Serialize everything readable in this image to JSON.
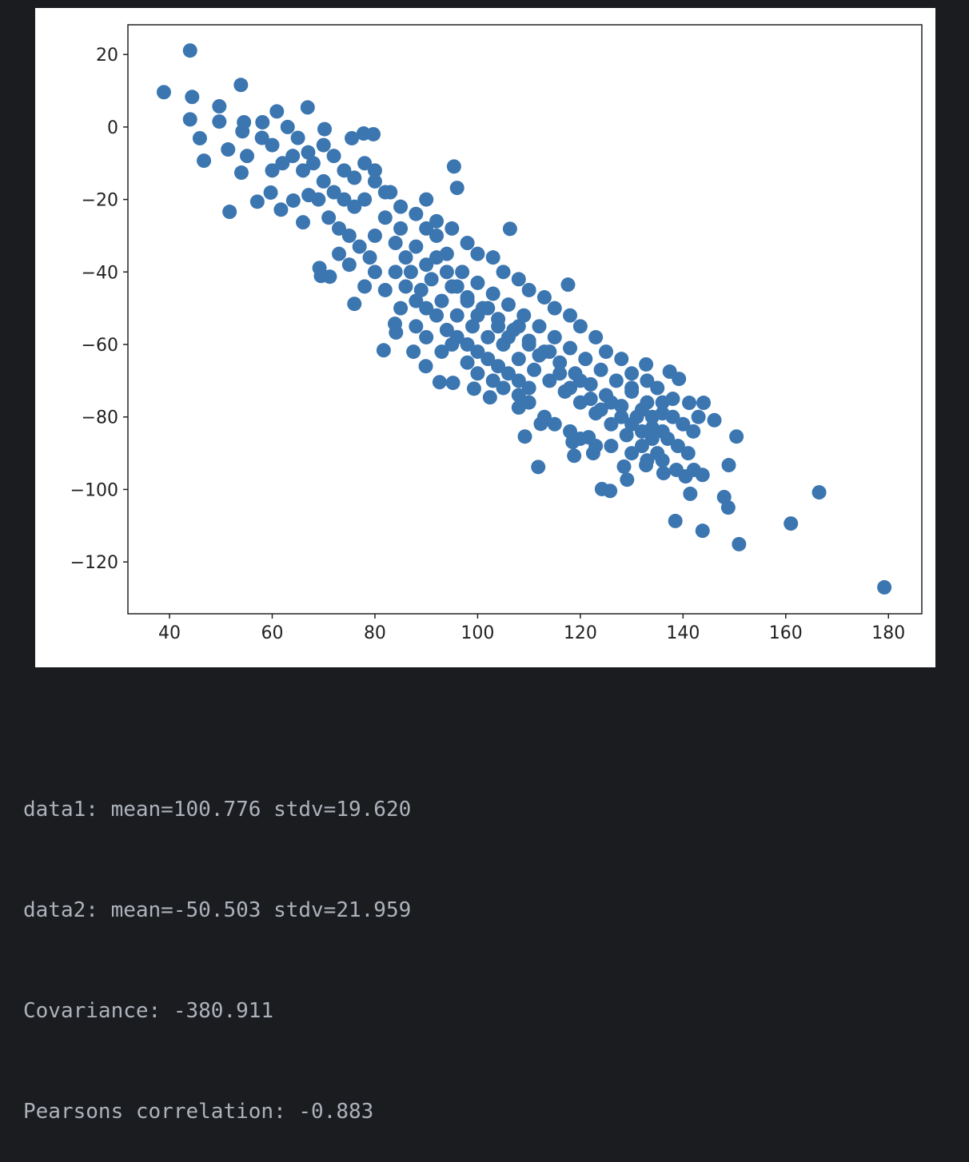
{
  "chart_data": {
    "type": "scatter",
    "title": "",
    "xlabel": "",
    "ylabel": "",
    "xlim": [
      31.9,
      186.5
    ],
    "ylim": [
      -134.3,
      28.2
    ],
    "xticks": [
      40,
      60,
      80,
      100,
      120,
      140,
      160,
      180
    ],
    "yticks": [
      20,
      0,
      -20,
      -40,
      -60,
      -80,
      -100,
      -120
    ],
    "xtick_labels": [
      "40",
      "60",
      "80",
      "100",
      "120",
      "140",
      "160",
      "180"
    ],
    "ytick_labels": [
      "20",
      "0",
      "−20",
      "−40",
      "−60",
      "−80",
      "−100",
      "−120"
    ],
    "grid": false,
    "marker_color": "#3b76b0",
    "points": [
      [
        38.9,
        9.6
      ],
      [
        44.0,
        21.1
      ],
      [
        44.4,
        8.3
      ],
      [
        44.0,
        2.1
      ],
      [
        45.9,
        -3.1
      ],
      [
        46.7,
        -9.3
      ],
      [
        49.7,
        5.7
      ],
      [
        49.7,
        1.5
      ],
      [
        51.4,
        -6.2
      ],
      [
        51.7,
        -23.4
      ],
      [
        53.9,
        11.6
      ],
      [
        54.5,
        1.3
      ],
      [
        54.2,
        -1.2
      ],
      [
        54.0,
        -12.6
      ],
      [
        55.1,
        -8.0
      ],
      [
        57.1,
        -20.6
      ],
      [
        58.1,
        1.3
      ],
      [
        60.9,
        4.3
      ],
      [
        66.9,
        5.4
      ],
      [
        59.7,
        -18.1
      ],
      [
        61.7,
        -22.8
      ],
      [
        64.1,
        -20.3
      ],
      [
        66.0,
        -26.3
      ],
      [
        67.1,
        -18.8
      ],
      [
        70.2,
        -0.6
      ],
      [
        75.5,
        -3.1
      ],
      [
        77.8,
        -1.8
      ],
      [
        79.7,
        -2.0
      ],
      [
        69.2,
        -38.9
      ],
      [
        69.5,
        -41.1
      ],
      [
        71.2,
        -41.3
      ],
      [
        76.0,
        -48.8
      ],
      [
        81.7,
        -61.6
      ],
      [
        83.9,
        -54.3
      ],
      [
        84.1,
        -56.7
      ],
      [
        87.5,
        -62.0
      ],
      [
        89.9,
        -66.0
      ],
      [
        95.4,
        -10.9
      ],
      [
        96.0,
        -16.8
      ],
      [
        106.3,
        -28.1
      ],
      [
        117.6,
        -43.5
      ],
      [
        109.2,
        -85.4
      ],
      [
        111.8,
        -93.8
      ],
      [
        118.8,
        -90.7
      ],
      [
        124.2,
        -99.9
      ],
      [
        125.8,
        -100.4
      ],
      [
        122.5,
        -90.0
      ],
      [
        129.1,
        -97.3
      ],
      [
        132.8,
        -65.5
      ],
      [
        137.4,
        -67.5
      ],
      [
        139.2,
        -69.5
      ],
      [
        144.0,
        -76.1
      ],
      [
        141.2,
        -76.1
      ],
      [
        146.1,
        -80.9
      ],
      [
        150.4,
        -85.4
      ],
      [
        148.9,
        -93.3
      ],
      [
        148.0,
        -102.1
      ],
      [
        148.8,
        -105.0
      ],
      [
        141.4,
        -101.2
      ],
      [
        138.5,
        -108.7
      ],
      [
        143.8,
        -111.4
      ],
      [
        150.9,
        -115.1
      ],
      [
        161.0,
        -109.4
      ],
      [
        166.5,
        -100.8
      ],
      [
        179.2,
        -127.0
      ],
      [
        143.8,
        -96.0
      ],
      [
        142.1,
        -94.6
      ],
      [
        140.5,
        -96.4
      ],
      [
        138.7,
        -94.6
      ],
      [
        136.2,
        -95.5
      ],
      [
        132.8,
        -93.3
      ],
      [
        128.5,
        -93.7
      ],
      [
        121.6,
        -85.6
      ],
      [
        118.5,
        -86.9
      ],
      [
        112.3,
        -81.9
      ],
      [
        108.0,
        -77.4
      ],
      [
        102.4,
        -74.6
      ],
      [
        99.3,
        -72.2
      ],
      [
        92.6,
        -70.4
      ],
      [
        95.2,
        -70.6
      ],
      [
        80,
        -30
      ],
      [
        82,
        -25
      ],
      [
        84,
        -32
      ],
      [
        85,
        -28
      ],
      [
        86,
        -36
      ],
      [
        87,
        -40
      ],
      [
        88,
        -33
      ],
      [
        89,
        -45
      ],
      [
        90,
        -38
      ],
      [
        91,
        -42
      ],
      [
        92,
        -30
      ],
      [
        93,
        -48
      ],
      [
        94,
        -35
      ],
      [
        95,
        -44
      ],
      [
        96,
        -52
      ],
      [
        97,
        -40
      ],
      [
        98,
        -47
      ],
      [
        99,
        -55
      ],
      [
        100,
        -43
      ],
      [
        101,
        -50
      ],
      [
        102,
        -58
      ],
      [
        103,
        -46
      ],
      [
        104,
        -53
      ],
      [
        105,
        -60
      ],
      [
        106,
        -49
      ],
      [
        107,
        -56
      ],
      [
        108,
        -64
      ],
      [
        109,
        -52
      ],
      [
        110,
        -59
      ],
      [
        111,
        -67
      ],
      [
        112,
        -55
      ],
      [
        113,
        -62
      ],
      [
        114,
        -70
      ],
      [
        115,
        -58
      ],
      [
        116,
        -65
      ],
      [
        117,
        -73
      ],
      [
        118,
        -61
      ],
      [
        119,
        -68
      ],
      [
        120,
        -76
      ],
      [
        121,
        -64
      ],
      [
        122,
        -71
      ],
      [
        123,
        -79
      ],
      [
        124,
        -67
      ],
      [
        125,
        -74
      ],
      [
        126,
        -82
      ],
      [
        127,
        -70
      ],
      [
        128,
        -77
      ],
      [
        129,
        -85
      ],
      [
        130,
        -73
      ],
      [
        131,
        -80
      ],
      [
        132,
        -88
      ],
      [
        133,
        -76
      ],
      [
        134,
        -83
      ],
      [
        135,
        -90
      ],
      [
        136,
        -79
      ],
      [
        137,
        -86
      ],
      [
        78,
        -20
      ],
      [
        80,
        -15
      ],
      [
        83,
        -18
      ],
      [
        85,
        -22
      ],
      [
        88,
        -24
      ],
      [
        90,
        -20
      ],
      [
        92,
        -26
      ],
      [
        95,
        -28
      ],
      [
        98,
        -32
      ],
      [
        100,
        -35
      ],
      [
        103,
        -36
      ],
      [
        105,
        -40
      ],
      [
        108,
        -42
      ],
      [
        110,
        -45
      ],
      [
        113,
        -47
      ],
      [
        115,
        -50
      ],
      [
        118,
        -52
      ],
      [
        120,
        -55
      ],
      [
        123,
        -58
      ],
      [
        125,
        -62
      ],
      [
        128,
        -64
      ],
      [
        130,
        -68
      ],
      [
        133,
        -70
      ],
      [
        135,
        -72
      ],
      [
        138,
        -75
      ],
      [
        82,
        -45
      ],
      [
        85,
        -50
      ],
      [
        88,
        -55
      ],
      [
        90,
        -58
      ],
      [
        93,
        -62
      ],
      [
        95,
        -60
      ],
      [
        98,
        -65
      ],
      [
        100,
        -68
      ],
      [
        103,
        -70
      ],
      [
        105,
        -72
      ],
      [
        108,
        -74
      ],
      [
        110,
        -76
      ],
      [
        113,
        -80
      ],
      [
        115,
        -82
      ],
      [
        118,
        -84
      ],
      [
        120,
        -86
      ],
      [
        123,
        -88
      ],
      [
        126,
        -88
      ],
      [
        130,
        -90
      ],
      [
        133,
        -92
      ],
      [
        136,
        -92
      ],
      [
        84,
        -40
      ],
      [
        86,
        -44
      ],
      [
        88,
        -48
      ],
      [
        90,
        -50
      ],
      [
        92,
        -52
      ],
      [
        94,
        -56
      ],
      [
        96,
        -58
      ],
      [
        98,
        -60
      ],
      [
        100,
        -62
      ],
      [
        102,
        -64
      ],
      [
        104,
        -66
      ],
      [
        106,
        -68
      ],
      [
        108,
        -70
      ],
      [
        110,
        -72
      ],
      [
        90,
        -28
      ],
      [
        92,
        -36
      ],
      [
        94,
        -40
      ],
      [
        96,
        -44
      ],
      [
        98,
        -48
      ],
      [
        100,
        -52
      ],
      [
        102,
        -50
      ],
      [
        104,
        -55
      ],
      [
        106,
        -58
      ],
      [
        108,
        -55
      ],
      [
        110,
        -60
      ],
      [
        112,
        -63
      ],
      [
        114,
        -62
      ],
      [
        116,
        -68
      ],
      [
        118,
        -72
      ],
      [
        120,
        -70
      ],
      [
        122,
        -75
      ],
      [
        124,
        -78
      ],
      [
        126,
        -76
      ],
      [
        128,
        -80
      ],
      [
        130,
        -82
      ],
      [
        132,
        -84
      ],
      [
        134,
        -86
      ],
      [
        136,
        -84
      ],
      [
        60,
        -5
      ],
      [
        62,
        -10
      ],
      [
        64,
        -8
      ],
      [
        66,
        -12
      ],
      [
        68,
        -10
      ],
      [
        70,
        -15
      ],
      [
        72,
        -18
      ],
      [
        74,
        -20
      ],
      [
        76,
        -22
      ],
      [
        73,
        -28
      ],
      [
        75,
        -30
      ],
      [
        77,
        -33
      ],
      [
        79,
        -36
      ],
      [
        70,
        -5
      ],
      [
        72,
        -8
      ],
      [
        74,
        -12
      ],
      [
        76,
        -14
      ],
      [
        78,
        -10
      ],
      [
        80,
        -12
      ],
      [
        82,
        -18
      ],
      [
        58,
        -3
      ],
      [
        60,
        -12
      ],
      [
        63,
        0
      ],
      [
        65,
        -3
      ],
      [
        67,
        -7
      ],
      [
        69,
        -20
      ],
      [
        71,
        -25
      ],
      [
        73,
        -35
      ],
      [
        75,
        -38
      ],
      [
        78,
        -44
      ],
      [
        80,
        -40
      ],
      [
        130,
        -72
      ],
      [
        132,
        -78
      ],
      [
        134,
        -80
      ],
      [
        136,
        -76
      ],
      [
        138,
        -80
      ],
      [
        140,
        -82
      ],
      [
        142,
        -84
      ],
      [
        139,
        -88
      ],
      [
        141,
        -90
      ],
      [
        143,
        -80
      ]
    ]
  },
  "output": {
    "lines": [
      "data1: mean=100.776 stdv=19.620",
      "data2: mean=-50.503 stdv=21.959",
      "Covariance: -380.911",
      "Pearsons correlation: -0.883"
    ]
  }
}
